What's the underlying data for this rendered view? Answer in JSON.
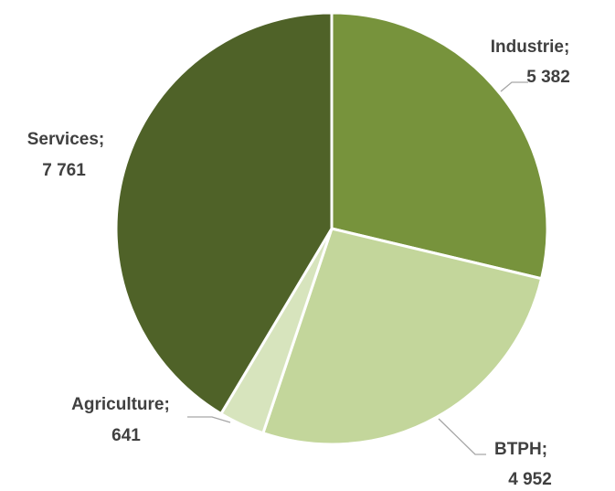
{
  "chart_data": {
    "type": "pie",
    "categories": [
      "Industrie",
      "BTPH",
      "Agriculture",
      "Services"
    ],
    "values": [
      5382,
      4952,
      641,
      7761
    ],
    "value_labels": [
      "5 382",
      "4 952",
      "641",
      "7 761"
    ],
    "separator": ";",
    "colors": [
      "#77933c",
      "#c3d69b",
      "#d7e4bd",
      "#4f6228"
    ]
  }
}
